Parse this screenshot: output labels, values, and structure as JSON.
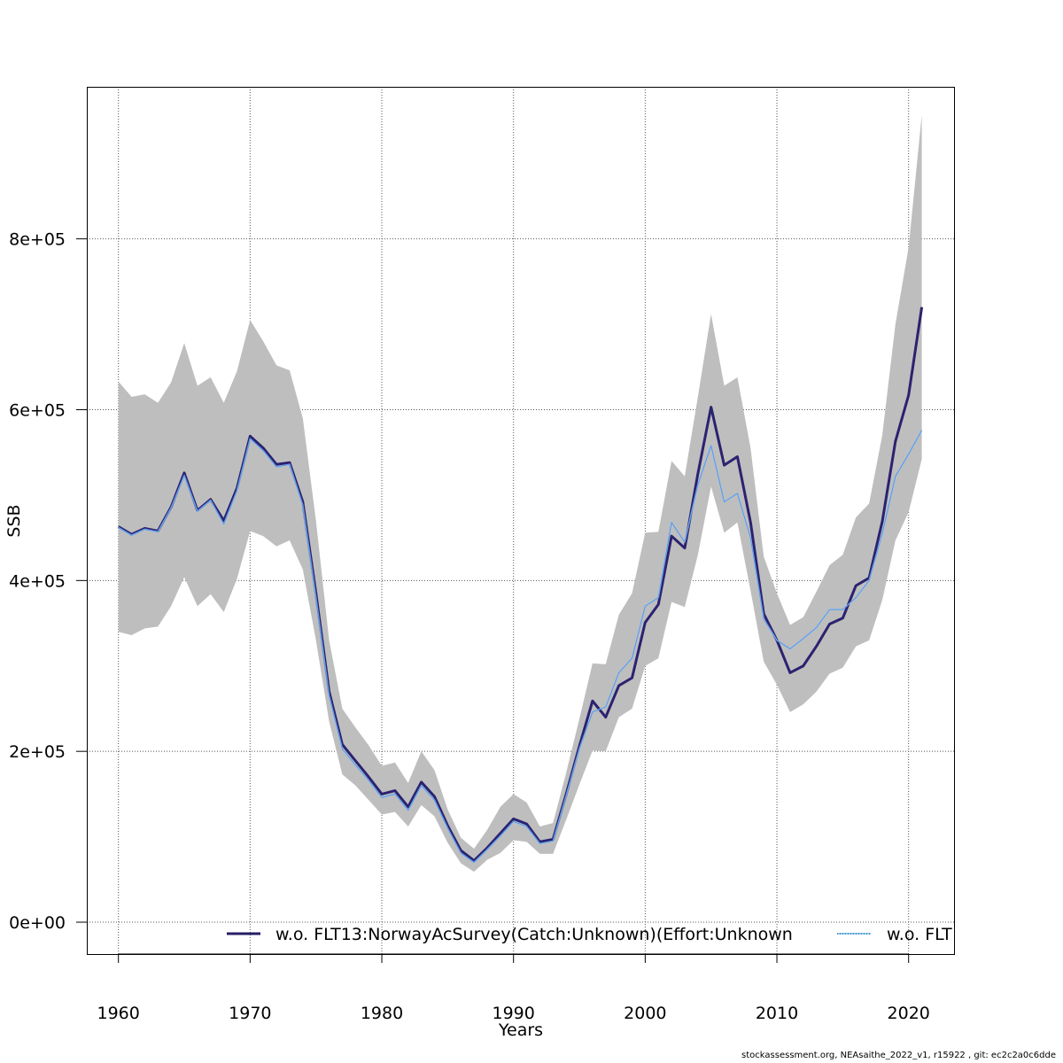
{
  "chart_data": {
    "type": "line",
    "title": "",
    "xlabel": "Years",
    "ylabel": "SSB",
    "xlim": [
      1957.6,
      1823.4
    ],
    "ylim": [
      -37300,
      978000
    ],
    "xticks": [
      1960,
      1970,
      1980,
      1990,
      2000,
      2010,
      2020
    ],
    "xtick_labels": [
      "1960",
      "1970",
      "1980",
      "1990",
      "2000",
      "2010",
      "2020"
    ],
    "yticks": [
      0,
      200000,
      400000,
      600000,
      800000
    ],
    "ytick_labels": [
      "0e+00",
      "2e+05",
      "4e+05",
      "6e+05",
      "8e+05"
    ],
    "grid": true,
    "legend_position": "bottom-right",
    "x": [
      1960,
      1961,
      1962,
      1963,
      1964,
      1965,
      1966,
      1967,
      1968,
      1969,
      1970,
      1971,
      1972,
      1973,
      1974,
      1975,
      1976,
      1977,
      1978,
      1979,
      1980,
      1981,
      1982,
      1983,
      1984,
      1985,
      1986,
      1987,
      1988,
      1989,
      1990,
      1991,
      1992,
      1993,
      1994,
      1995,
      1996,
      1997,
      1998,
      1999,
      2000,
      2001,
      2002,
      2003,
      2004,
      2005,
      2006,
      2007,
      2008,
      2009,
      2010,
      2011,
      2012,
      2013,
      2014,
      2015,
      2016,
      2017,
      2018,
      2019,
      2020,
      2021
    ],
    "band": {
      "color": "#bebebe",
      "upper": [
        633000,
        615000,
        618000,
        608000,
        632000,
        678000,
        628000,
        638000,
        608000,
        645000,
        705000,
        680000,
        652000,
        646000,
        590000,
        470000,
        330000,
        250000,
        228000,
        207000,
        183000,
        187000,
        163000,
        200000,
        178000,
        132000,
        99000,
        86000,
        108000,
        135000,
        150000,
        140000,
        112000,
        116000,
        175000,
        238000,
        303000,
        302000,
        360000,
        385000,
        456000,
        457000,
        540000,
        522000,
        615000,
        712000,
        628000,
        638000,
        555000,
        428000,
        385000,
        348000,
        357000,
        387000,
        418000,
        430000,
        474000,
        490000,
        570000,
        700000,
        790000,
        945000
      ],
      "lower": [
        340000,
        336000,
        344000,
        346000,
        370000,
        404000,
        370000,
        384000,
        363000,
        402000,
        458000,
        452000,
        440000,
        447000,
        413000,
        330000,
        235000,
        173000,
        160000,
        143000,
        126000,
        129000,
        112000,
        137000,
        124000,
        93000,
        69000,
        59000,
        73000,
        81000,
        96000,
        94000,
        80000,
        80000,
        120000,
        161000,
        201000,
        200000,
        240000,
        250000,
        300000,
        309000,
        375000,
        369000,
        430000,
        510000,
        456000,
        468000,
        388000,
        305000,
        278000,
        246000,
        255000,
        270000,
        291000,
        298000,
        323000,
        330000,
        377000,
        447000,
        480000,
        542000
      ]
    },
    "series": [
      {
        "name": "w.o. FLT13:NorwayAcSurvey(Catch:Unknown)(Effort:Unknown",
        "color": "#2b2270",
        "values": [
          463000,
          454000,
          461000,
          458000,
          486000,
          526000,
          482000,
          495000,
          470000,
          508000,
          569000,
          555000,
          536000,
          538000,
          492000,
          385000,
          270000,
          208000,
          189000,
          170000,
          150000,
          154000,
          135000,
          164000,
          147000,
          113000,
          84000,
          72000,
          87000,
          104000,
          121000,
          115000,
          94000,
          97000,
          150000,
          206000,
          259000,
          240000,
          277000,
          286000,
          351000,
          372000,
          452000,
          438000,
          525000,
          603000,
          535000,
          545000,
          468000,
          361000,
          330000,
          292000,
          300000,
          323000,
          349000,
          356000,
          394000,
          403000,
          469000,
          563000,
          617000,
          720000
        ]
      },
      {
        "name": "w.o. FLT",
        "color": "#87cefa",
        "values": [
          462000,
          453000,
          460000,
          457000,
          485000,
          523000,
          481000,
          494000,
          466000,
          505000,
          566000,
          552000,
          533000,
          536000,
          488000,
          380000,
          265000,
          203000,
          184000,
          166000,
          146000,
          150000,
          131000,
          160000,
          143000,
          110000,
          81000,
          70000,
          85000,
          101000,
          118000,
          112000,
          92000,
          95000,
          148000,
          203000,
          246000,
          252000,
          292000,
          309000,
          370000,
          380000,
          468000,
          445000,
          512000,
          558000,
          492000,
          502000,
          450000,
          355000,
          330000,
          320000,
          332000,
          345000,
          366000,
          366000,
          380000,
          400000,
          455000,
          522000,
          548000,
          576000
        ]
      }
    ]
  },
  "footer": {
    "text": "stockassessment.org, NEAsaithe_2022_v1, r15922 , git: ec2c2a0c6dde"
  }
}
